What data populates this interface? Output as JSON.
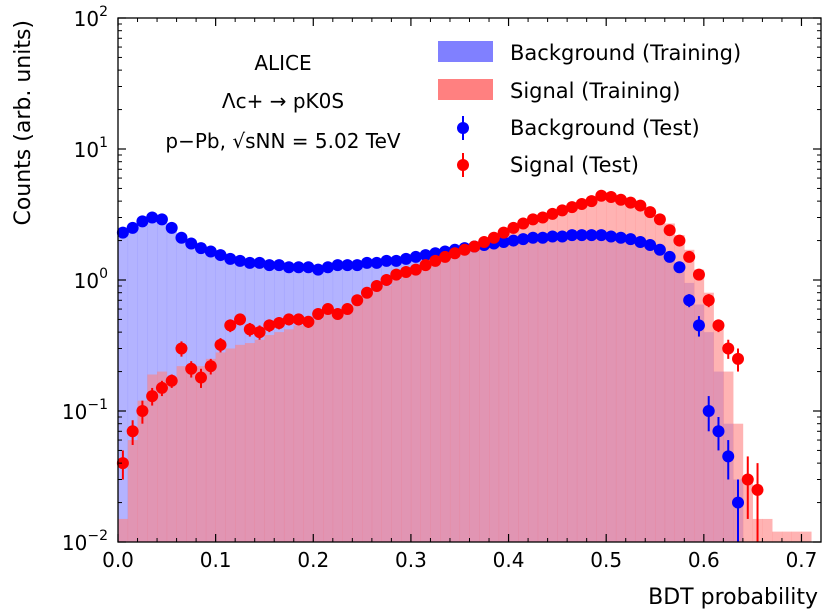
{
  "chart_data": {
    "type": "area",
    "xlabel": "BDT probability",
    "ylabel": "Counts (arb. units)",
    "xlim": [
      0.0,
      0.72
    ],
    "ylim": [
      0.01,
      100
    ],
    "yscale": "log",
    "x_ticks": [
      "0.0",
      "0.1",
      "0.2",
      "0.3",
      "0.4",
      "0.5",
      "0.6",
      "0.7"
    ],
    "y_ticks": [
      {
        "base": "10",
        "exp": "−2"
      },
      {
        "base": "10",
        "exp": "−1"
      },
      {
        "base": "10",
        "exp": "0"
      },
      {
        "base": "10",
        "exp": "1"
      },
      {
        "base": "10",
        "exp": "2"
      }
    ],
    "annotations": {
      "experiment": "ALICE",
      "decay": "Λc+ → pK0S",
      "system": "p−Pb, √sNN = 5.02 TeV"
    },
    "legend_position": "top-right",
    "bin_width": 0.01,
    "series": [
      {
        "name": "Background (Training)",
        "style": "filled-histogram",
        "color": "#8080ff",
        "x": [
          0.0,
          0.01,
          0.02,
          0.03,
          0.04,
          0.05,
          0.06,
          0.07,
          0.08,
          0.09,
          0.1,
          0.11,
          0.12,
          0.13,
          0.14,
          0.15,
          0.16,
          0.17,
          0.18,
          0.19,
          0.2,
          0.21,
          0.22,
          0.23,
          0.24,
          0.25,
          0.26,
          0.27,
          0.28,
          0.29,
          0.3,
          0.31,
          0.32,
          0.33,
          0.34,
          0.35,
          0.36,
          0.37,
          0.38,
          0.39,
          0.4,
          0.41,
          0.42,
          0.43,
          0.44,
          0.45,
          0.46,
          0.47,
          0.48,
          0.49,
          0.5,
          0.51,
          0.52,
          0.53,
          0.54,
          0.55,
          0.56,
          0.57,
          0.58,
          0.59,
          0.6,
          0.61,
          0.62,
          0.63,
          0.64
        ],
        "values": [
          2.2,
          2.5,
          2.9,
          3.1,
          2.9,
          2.5,
          2.1,
          1.9,
          1.8,
          1.7,
          1.6,
          1.5,
          1.45,
          1.4,
          1.4,
          1.35,
          1.3,
          1.3,
          1.25,
          1.25,
          1.25,
          1.25,
          1.3,
          1.3,
          1.3,
          1.35,
          1.35,
          1.4,
          1.4,
          1.45,
          1.5,
          1.55,
          1.6,
          1.65,
          1.7,
          1.75,
          1.8,
          1.85,
          1.9,
          1.95,
          2.0,
          2.05,
          2.1,
          2.1,
          2.15,
          2.15,
          2.2,
          2.2,
          2.2,
          2.2,
          2.15,
          2.1,
          2.05,
          1.95,
          1.85,
          1.7,
          1.5,
          1.25,
          0.95,
          0.65,
          0.4,
          0.2,
          0.08,
          0.03,
          0.01
        ]
      },
      {
        "name": "Signal (Training)",
        "style": "filled-histogram",
        "color": "#ff8080",
        "x": [
          0.0,
          0.01,
          0.02,
          0.03,
          0.04,
          0.05,
          0.06,
          0.07,
          0.08,
          0.09,
          0.1,
          0.11,
          0.12,
          0.13,
          0.14,
          0.15,
          0.16,
          0.17,
          0.18,
          0.19,
          0.2,
          0.21,
          0.22,
          0.23,
          0.24,
          0.25,
          0.26,
          0.27,
          0.28,
          0.29,
          0.3,
          0.31,
          0.32,
          0.33,
          0.34,
          0.35,
          0.36,
          0.37,
          0.38,
          0.39,
          0.4,
          0.41,
          0.42,
          0.43,
          0.44,
          0.45,
          0.46,
          0.47,
          0.48,
          0.49,
          0.5,
          0.51,
          0.52,
          0.53,
          0.54,
          0.55,
          0.56,
          0.57,
          0.58,
          0.59,
          0.6,
          0.61,
          0.62,
          0.63,
          0.64,
          0.65,
          0.66,
          0.67,
          0.68,
          0.69,
          0.7
        ],
        "values": [
          0.015,
          0.06,
          0.12,
          0.19,
          0.2,
          0.18,
          0.22,
          0.2,
          0.22,
          0.25,
          0.28,
          0.3,
          0.32,
          0.33,
          0.35,
          0.38,
          0.4,
          0.42,
          0.45,
          0.48,
          0.5,
          0.55,
          0.6,
          0.65,
          0.7,
          0.8,
          0.85,
          0.9,
          1.0,
          1.1,
          1.2,
          1.3,
          1.4,
          1.5,
          1.6,
          1.7,
          1.8,
          1.95,
          2.1,
          2.3,
          2.5,
          2.7,
          2.9,
          3.1,
          3.3,
          3.5,
          3.7,
          3.9,
          4.1,
          4.2,
          4.2,
          4.1,
          4.0,
          3.8,
          3.5,
          3.1,
          2.7,
          2.2,
          1.7,
          1.2,
          0.8,
          0.45,
          0.2,
          0.08,
          0.03,
          0.015,
          0.015,
          0.012,
          0.012,
          0.012,
          0.012
        ]
      },
      {
        "name": "Background (Test)",
        "style": "markers",
        "color": "#0000ff",
        "x": [
          0.005,
          0.015,
          0.025,
          0.035,
          0.045,
          0.055,
          0.065,
          0.075,
          0.085,
          0.095,
          0.105,
          0.115,
          0.125,
          0.135,
          0.145,
          0.155,
          0.165,
          0.175,
          0.185,
          0.195,
          0.205,
          0.215,
          0.225,
          0.235,
          0.245,
          0.255,
          0.265,
          0.275,
          0.285,
          0.295,
          0.305,
          0.315,
          0.325,
          0.335,
          0.345,
          0.355,
          0.365,
          0.375,
          0.385,
          0.395,
          0.405,
          0.415,
          0.425,
          0.435,
          0.445,
          0.455,
          0.465,
          0.475,
          0.485,
          0.495,
          0.505,
          0.515,
          0.525,
          0.535,
          0.545,
          0.555,
          0.565,
          0.575,
          0.585,
          0.595,
          0.605,
          0.615,
          0.625,
          0.635
        ],
        "values": [
          2.3,
          2.5,
          2.8,
          3.0,
          2.9,
          2.5,
          2.1,
          1.9,
          1.75,
          1.65,
          1.55,
          1.45,
          1.4,
          1.35,
          1.35,
          1.3,
          1.3,
          1.25,
          1.25,
          1.25,
          1.2,
          1.25,
          1.3,
          1.3,
          1.3,
          1.35,
          1.35,
          1.4,
          1.4,
          1.45,
          1.5,
          1.55,
          1.6,
          1.65,
          1.7,
          1.75,
          1.8,
          1.85,
          1.9,
          1.95,
          2.0,
          2.05,
          2.1,
          2.1,
          2.15,
          2.15,
          2.2,
          2.2,
          2.2,
          2.2,
          2.15,
          2.1,
          2.05,
          1.95,
          1.85,
          1.7,
          1.5,
          1.25,
          0.7,
          0.45,
          0.1,
          0.07,
          0.045,
          0.02
        ],
        "errors": [
          0.1,
          0.1,
          0.1,
          0.1,
          0.1,
          0.1,
          0.08,
          0.08,
          0.08,
          0.08,
          0.08,
          0.06,
          0.06,
          0.06,
          0.06,
          0.06,
          0.06,
          0.06,
          0.06,
          0.06,
          0.06,
          0.06,
          0.06,
          0.06,
          0.06,
          0.06,
          0.06,
          0.06,
          0.06,
          0.06,
          0.06,
          0.06,
          0.06,
          0.06,
          0.06,
          0.06,
          0.06,
          0.06,
          0.06,
          0.06,
          0.06,
          0.06,
          0.06,
          0.06,
          0.06,
          0.06,
          0.06,
          0.06,
          0.06,
          0.06,
          0.06,
          0.06,
          0.06,
          0.06,
          0.06,
          0.06,
          0.06,
          0.06,
          0.08,
          0.08,
          0.03,
          0.02,
          0.015,
          0.01
        ]
      },
      {
        "name": "Signal (Test)",
        "style": "markers",
        "color": "#ff0000",
        "x": [
          0.005,
          0.015,
          0.025,
          0.035,
          0.045,
          0.055,
          0.065,
          0.075,
          0.085,
          0.095,
          0.105,
          0.115,
          0.125,
          0.135,
          0.145,
          0.155,
          0.165,
          0.175,
          0.185,
          0.195,
          0.205,
          0.215,
          0.225,
          0.235,
          0.245,
          0.255,
          0.265,
          0.275,
          0.285,
          0.295,
          0.305,
          0.315,
          0.325,
          0.335,
          0.345,
          0.355,
          0.365,
          0.375,
          0.385,
          0.395,
          0.405,
          0.415,
          0.425,
          0.435,
          0.445,
          0.455,
          0.465,
          0.475,
          0.485,
          0.495,
          0.505,
          0.515,
          0.525,
          0.535,
          0.545,
          0.555,
          0.565,
          0.575,
          0.585,
          0.595,
          0.605,
          0.615,
          0.625,
          0.635,
          0.645,
          0.655
        ],
        "values": [
          0.04,
          0.07,
          0.1,
          0.13,
          0.15,
          0.17,
          0.3,
          0.21,
          0.18,
          0.22,
          0.32,
          0.45,
          0.5,
          0.42,
          0.4,
          0.45,
          0.47,
          0.5,
          0.5,
          0.48,
          0.55,
          0.6,
          0.55,
          0.6,
          0.7,
          0.8,
          0.9,
          1.0,
          1.1,
          1.15,
          1.2,
          1.3,
          1.4,
          1.5,
          1.6,
          1.7,
          1.8,
          1.95,
          2.1,
          2.3,
          2.5,
          2.7,
          2.9,
          3.0,
          3.2,
          3.4,
          3.6,
          3.8,
          4.0,
          4.4,
          4.3,
          4.1,
          3.9,
          3.7,
          3.3,
          2.9,
          2.4,
          2.0,
          1.5,
          1.1,
          0.7,
          0.45,
          0.3,
          0.25,
          0.03,
          0.025
        ],
        "errors": [
          0.01,
          0.015,
          0.02,
          0.02,
          0.02,
          0.02,
          0.04,
          0.03,
          0.03,
          0.03,
          0.04,
          0.05,
          0.05,
          0.05,
          0.05,
          0.05,
          0.05,
          0.05,
          0.05,
          0.05,
          0.05,
          0.05,
          0.05,
          0.05,
          0.05,
          0.06,
          0.06,
          0.06,
          0.06,
          0.06,
          0.06,
          0.06,
          0.06,
          0.06,
          0.06,
          0.06,
          0.06,
          0.06,
          0.06,
          0.06,
          0.08,
          0.08,
          0.08,
          0.08,
          0.08,
          0.08,
          0.08,
          0.08,
          0.08,
          0.1,
          0.1,
          0.1,
          0.1,
          0.1,
          0.1,
          0.1,
          0.1,
          0.1,
          0.1,
          0.1,
          0.08,
          0.05,
          0.05,
          0.05,
          0.015,
          0.015
        ]
      }
    ]
  }
}
